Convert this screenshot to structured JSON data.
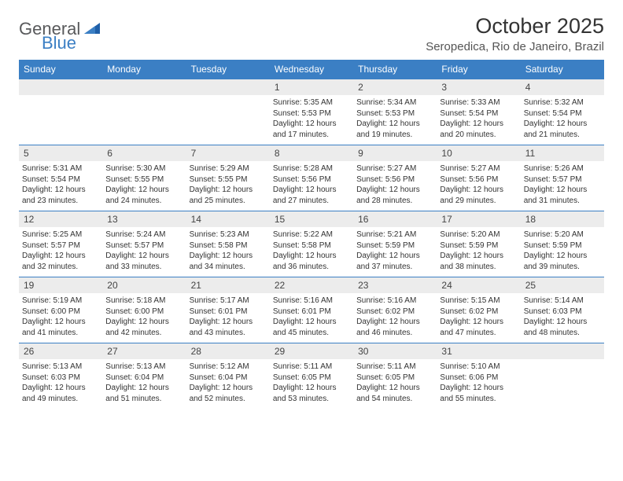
{
  "brand": {
    "part1": "General",
    "part2": "Blue"
  },
  "title": "October 2025",
  "location": "Seropedica, Rio de Janeiro, Brazil",
  "colors": {
    "header_bg": "#3b7fc4",
    "header_text": "#ffffff",
    "daynum_bg": "#ececec",
    "row_border": "#3b7fc4",
    "body_text": "#333333",
    "logo_gray": "#58595b",
    "logo_blue": "#3b7fc4",
    "page_bg": "#ffffff"
  },
  "day_headers": [
    "Sunday",
    "Monday",
    "Tuesday",
    "Wednesday",
    "Thursday",
    "Friday",
    "Saturday"
  ],
  "weeks": [
    [
      null,
      null,
      null,
      {
        "n": "1",
        "sunrise": "5:35 AM",
        "sunset": "5:53 PM",
        "daylight": "12 hours and 17 minutes."
      },
      {
        "n": "2",
        "sunrise": "5:34 AM",
        "sunset": "5:53 PM",
        "daylight": "12 hours and 19 minutes."
      },
      {
        "n": "3",
        "sunrise": "5:33 AM",
        "sunset": "5:54 PM",
        "daylight": "12 hours and 20 minutes."
      },
      {
        "n": "4",
        "sunrise": "5:32 AM",
        "sunset": "5:54 PM",
        "daylight": "12 hours and 21 minutes."
      }
    ],
    [
      {
        "n": "5",
        "sunrise": "5:31 AM",
        "sunset": "5:54 PM",
        "daylight": "12 hours and 23 minutes."
      },
      {
        "n": "6",
        "sunrise": "5:30 AM",
        "sunset": "5:55 PM",
        "daylight": "12 hours and 24 minutes."
      },
      {
        "n": "7",
        "sunrise": "5:29 AM",
        "sunset": "5:55 PM",
        "daylight": "12 hours and 25 minutes."
      },
      {
        "n": "8",
        "sunrise": "5:28 AM",
        "sunset": "5:56 PM",
        "daylight": "12 hours and 27 minutes."
      },
      {
        "n": "9",
        "sunrise": "5:27 AM",
        "sunset": "5:56 PM",
        "daylight": "12 hours and 28 minutes."
      },
      {
        "n": "10",
        "sunrise": "5:27 AM",
        "sunset": "5:56 PM",
        "daylight": "12 hours and 29 minutes."
      },
      {
        "n": "11",
        "sunrise": "5:26 AM",
        "sunset": "5:57 PM",
        "daylight": "12 hours and 31 minutes."
      }
    ],
    [
      {
        "n": "12",
        "sunrise": "5:25 AM",
        "sunset": "5:57 PM",
        "daylight": "12 hours and 32 minutes."
      },
      {
        "n": "13",
        "sunrise": "5:24 AM",
        "sunset": "5:57 PM",
        "daylight": "12 hours and 33 minutes."
      },
      {
        "n": "14",
        "sunrise": "5:23 AM",
        "sunset": "5:58 PM",
        "daylight": "12 hours and 34 minutes."
      },
      {
        "n": "15",
        "sunrise": "5:22 AM",
        "sunset": "5:58 PM",
        "daylight": "12 hours and 36 minutes."
      },
      {
        "n": "16",
        "sunrise": "5:21 AM",
        "sunset": "5:59 PM",
        "daylight": "12 hours and 37 minutes."
      },
      {
        "n": "17",
        "sunrise": "5:20 AM",
        "sunset": "5:59 PM",
        "daylight": "12 hours and 38 minutes."
      },
      {
        "n": "18",
        "sunrise": "5:20 AM",
        "sunset": "5:59 PM",
        "daylight": "12 hours and 39 minutes."
      }
    ],
    [
      {
        "n": "19",
        "sunrise": "5:19 AM",
        "sunset": "6:00 PM",
        "daylight": "12 hours and 41 minutes."
      },
      {
        "n": "20",
        "sunrise": "5:18 AM",
        "sunset": "6:00 PM",
        "daylight": "12 hours and 42 minutes."
      },
      {
        "n": "21",
        "sunrise": "5:17 AM",
        "sunset": "6:01 PM",
        "daylight": "12 hours and 43 minutes."
      },
      {
        "n": "22",
        "sunrise": "5:16 AM",
        "sunset": "6:01 PM",
        "daylight": "12 hours and 45 minutes."
      },
      {
        "n": "23",
        "sunrise": "5:16 AM",
        "sunset": "6:02 PM",
        "daylight": "12 hours and 46 minutes."
      },
      {
        "n": "24",
        "sunrise": "5:15 AM",
        "sunset": "6:02 PM",
        "daylight": "12 hours and 47 minutes."
      },
      {
        "n": "25",
        "sunrise": "5:14 AM",
        "sunset": "6:03 PM",
        "daylight": "12 hours and 48 minutes."
      }
    ],
    [
      {
        "n": "26",
        "sunrise": "5:13 AM",
        "sunset": "6:03 PM",
        "daylight": "12 hours and 49 minutes."
      },
      {
        "n": "27",
        "sunrise": "5:13 AM",
        "sunset": "6:04 PM",
        "daylight": "12 hours and 51 minutes."
      },
      {
        "n": "28",
        "sunrise": "5:12 AM",
        "sunset": "6:04 PM",
        "daylight": "12 hours and 52 minutes."
      },
      {
        "n": "29",
        "sunrise": "5:11 AM",
        "sunset": "6:05 PM",
        "daylight": "12 hours and 53 minutes."
      },
      {
        "n": "30",
        "sunrise": "5:11 AM",
        "sunset": "6:05 PM",
        "daylight": "12 hours and 54 minutes."
      },
      {
        "n": "31",
        "sunrise": "5:10 AM",
        "sunset": "6:06 PM",
        "daylight": "12 hours and 55 minutes."
      },
      null
    ]
  ],
  "labels": {
    "sunrise": "Sunrise:",
    "sunset": "Sunset:",
    "daylight": "Daylight:"
  }
}
